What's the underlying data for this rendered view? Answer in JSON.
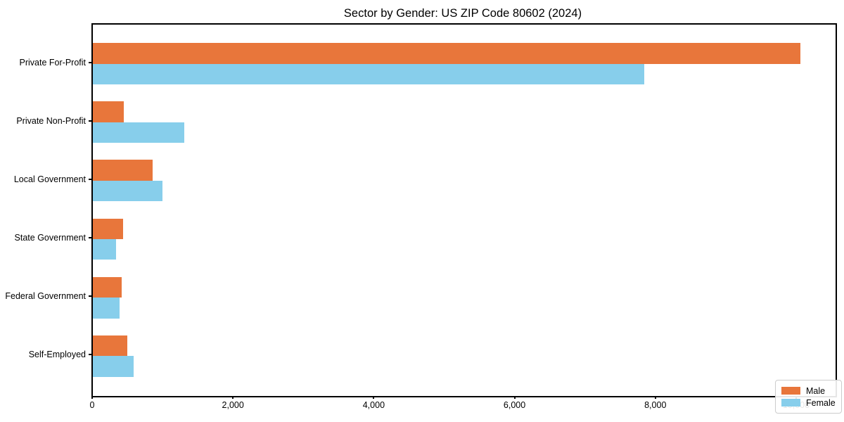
{
  "chart_data": {
    "type": "bar",
    "orientation": "horizontal",
    "title": "Sector by Gender: US ZIP Code 80602 (2024)",
    "categories": [
      "Private For-Profit",
      "Private Non-Profit",
      "Local Government",
      "State Government",
      "Federal Government",
      "Self-Employed"
    ],
    "series": [
      {
        "name": "Male",
        "color": "#e8763b",
        "values": [
          10050,
          440,
          850,
          430,
          410,
          490
        ]
      },
      {
        "name": "Female",
        "color": "#87ceeb",
        "values": [
          7830,
          1300,
          990,
          330,
          375,
          580
        ]
      }
    ],
    "xlabel": "",
    "ylabel": "",
    "xlim": [
      0,
      10550
    ],
    "xticks": [
      0,
      2000,
      4000,
      6000,
      8000,
      10000
    ],
    "xtick_labels": [
      "0",
      "2,000",
      "4,000",
      "6,000",
      "8,000",
      "10,000"
    ],
    "grid": false,
    "legend": {
      "position": "lower right",
      "entries": [
        {
          "label": "Male",
          "color": "#e8763b"
        },
        {
          "label": "Female",
          "color": "#87ceeb"
        }
      ]
    }
  }
}
